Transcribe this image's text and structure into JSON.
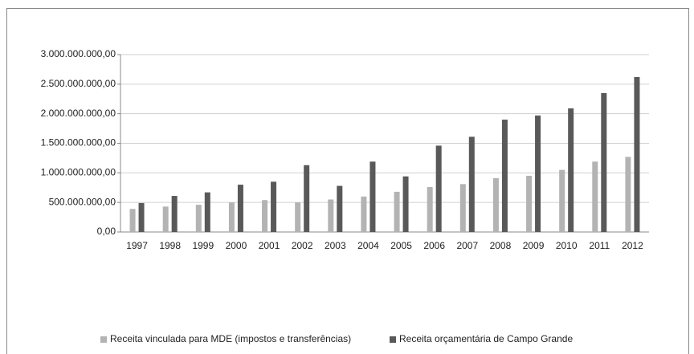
{
  "chart_data": {
    "type": "bar",
    "categories": [
      "1997",
      "1998",
      "1999",
      "2000",
      "2001",
      "2002",
      "2003",
      "2004",
      "2005",
      "2006",
      "2007",
      "2008",
      "2009",
      "2010",
      "2011",
      "2012"
    ],
    "series": [
      {
        "name": "Receita vinculada para MDE (impostos e transferências)",
        "color": "#b3b3b3",
        "values": [
          390000000,
          430000000,
          460000000,
          500000000,
          540000000,
          500000000,
          550000000,
          600000000,
          680000000,
          760000000,
          810000000,
          910000000,
          950000000,
          1050000000,
          1190000000,
          1270000000
        ]
      },
      {
        "name": "Receita orçamentária de Campo Grande",
        "color": "#595959",
        "values": [
          490000000,
          610000000,
          670000000,
          800000000,
          850000000,
          1130000000,
          780000000,
          1190000000,
          940000000,
          1460000000,
          1610000000,
          1900000000,
          1970000000,
          2090000000,
          2350000000,
          2620000000
        ]
      }
    ],
    "ylim": [
      0,
      3000000000
    ],
    "yticks": [
      {
        "value": 0,
        "label": "0,00"
      },
      {
        "value": 500000000,
        "label": "500.000.000,00"
      },
      {
        "value": 1000000000,
        "label": "1.000.000.000,00"
      },
      {
        "value": 1500000000,
        "label": "1.500.000.000,00"
      },
      {
        "value": 2000000000,
        "label": "2.000.000.000,00"
      },
      {
        "value": 2500000000,
        "label": "2.500.000.000,00"
      },
      {
        "value": 3000000000,
        "label": "3.000.000.000,00"
      }
    ],
    "grid": true,
    "legend": "bottom"
  }
}
